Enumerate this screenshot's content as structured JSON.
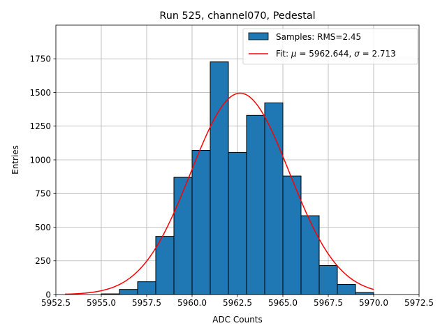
{
  "chart_data": {
    "type": "histogram",
    "title": "Run 525, channel070, Pedestal",
    "xlabel": "ADC Counts",
    "ylabel": "Entries",
    "xlim": [
      5952.5,
      5972.5
    ],
    "ylim": [
      0,
      2000
    ],
    "grid": true,
    "legend_position": "top-right",
    "x_ticks": [
      5952.5,
      5955.0,
      5957.5,
      5960.0,
      5962.5,
      5965.0,
      5967.5,
      5970.0,
      5972.5
    ],
    "x_tick_labels": [
      "5952.5",
      "5955.0",
      "5957.5",
      "5960.0",
      "5962.5",
      "5965.0",
      "5967.5",
      "5970.0",
      "5972.5"
    ],
    "y_ticks": [
      0,
      250,
      500,
      750,
      1000,
      1250,
      1500,
      1750
    ],
    "y_tick_labels": [
      "0",
      "250",
      "500",
      "750",
      "1000",
      "1250",
      "1500",
      "1750"
    ],
    "bins": [
      {
        "left": 5955.0,
        "right": 5956.0,
        "count": 5
      },
      {
        "left": 5956.0,
        "right": 5957.0,
        "count": 38
      },
      {
        "left": 5957.0,
        "right": 5958.0,
        "count": 95
      },
      {
        "left": 5958.0,
        "right": 5959.0,
        "count": 432
      },
      {
        "left": 5959.0,
        "right": 5960.0,
        "count": 870
      },
      {
        "left": 5960.0,
        "right": 5961.0,
        "count": 1070
      },
      {
        "left": 5961.0,
        "right": 5962.0,
        "count": 1727
      },
      {
        "left": 5962.0,
        "right": 5963.0,
        "count": 1055
      },
      {
        "left": 5963.0,
        "right": 5964.0,
        "count": 1330
      },
      {
        "left": 5964.0,
        "right": 5965.0,
        "count": 1423
      },
      {
        "left": 5965.0,
        "right": 5966.0,
        "count": 880
      },
      {
        "left": 5966.0,
        "right": 5967.0,
        "count": 585
      },
      {
        "left": 5967.0,
        "right": 5968.0,
        "count": 215
      },
      {
        "left": 5968.0,
        "right": 5969.0,
        "count": 75
      },
      {
        "left": 5969.0,
        "right": 5970.0,
        "count": 15
      }
    ],
    "bar_color": "#1f77b4",
    "fit": {
      "mu": 5962.644,
      "sigma": 2.713,
      "amplitude": 1495,
      "x_range": [
        5953.0,
        5970.0
      ],
      "color": "#ff0000"
    },
    "legend": [
      {
        "label": "Samples: RMS=2.45",
        "kind": "patch",
        "color": "#1f77b4"
      },
      {
        "label_prefix": "Fit: ",
        "mu_symbol": "μ",
        "mu_text": " = 5962.644, ",
        "sigma_symbol": "σ",
        "sigma_text": " = 2.713",
        "kind": "line",
        "color": "#ff0000"
      }
    ]
  }
}
